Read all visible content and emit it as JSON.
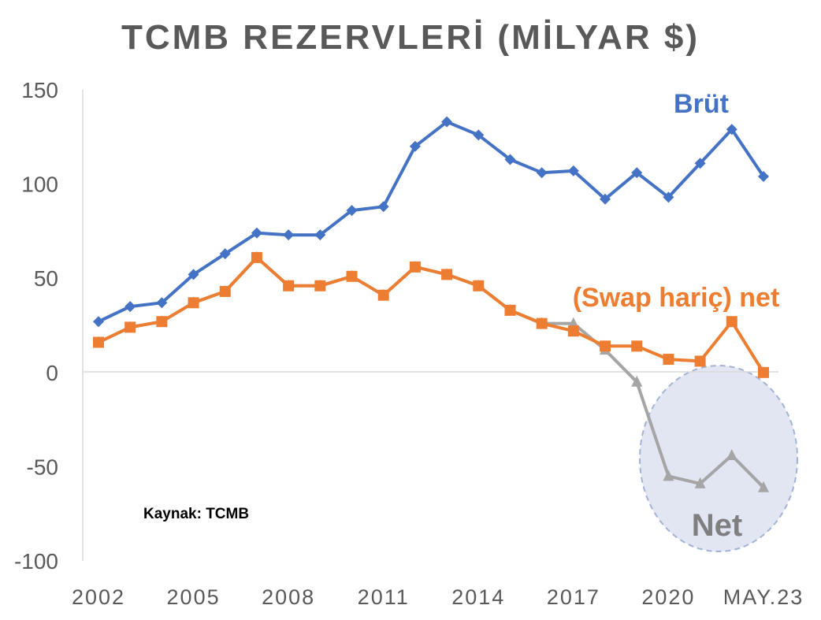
{
  "chart_data": {
    "type": "line",
    "title": "TCMB REZERVLERİ (MİLYAR $)",
    "source_note": "Kaynak: TCMB",
    "colors": {
      "brut": "#4472C4",
      "swap": "#ED7D31",
      "net": "#A5A5A5",
      "ellipse_fill": "#E2E6F3",
      "ellipse_stroke": "#A3B3D6"
    },
    "x": [
      "2002",
      "2003",
      "2004",
      "2005",
      "2006",
      "2007",
      "2008",
      "2009",
      "2010",
      "2011",
      "2012",
      "2013",
      "2014",
      "2015",
      "2016",
      "2017",
      "2018",
      "2019",
      "2020",
      "2021",
      "2022",
      "MAY.23"
    ],
    "x_tick_labels": [
      "2002",
      "2005",
      "2008",
      "2011",
      "2014",
      "2017",
      "2020",
      "MAY.23"
    ],
    "ylim": [
      -100,
      150
    ],
    "y_ticks": [
      150,
      100,
      50,
      0,
      -50,
      -100
    ],
    "y_tick_labels": [
      "150",
      "100",
      "50",
      "0",
      "-50",
      "-100"
    ],
    "grid": false,
    "series": [
      {
        "name": "Brüt",
        "marker": "diamond",
        "values": [
          27,
          35,
          37,
          52,
          63,
          74,
          73,
          73,
          86,
          88,
          120,
          133,
          126,
          113,
          106,
          107,
          92,
          106,
          93,
          111,
          129,
          104
        ]
      },
      {
        "name": "(Swap hariç) net",
        "marker": "square",
        "values": [
          16,
          24,
          27,
          37,
          43,
          61,
          46,
          46,
          51,
          41,
          56,
          52,
          46,
          33,
          26,
          22,
          14,
          14,
          7,
          6,
          27,
          0
        ]
      },
      {
        "name": "Net",
        "marker": "triangle",
        "values": [
          16,
          24,
          27,
          37,
          43,
          61,
          46,
          46,
          51,
          41,
          56,
          52,
          46,
          33,
          26,
          26,
          12,
          -5,
          -55,
          -59,
          -44,
          -61
        ]
      }
    ]
  }
}
